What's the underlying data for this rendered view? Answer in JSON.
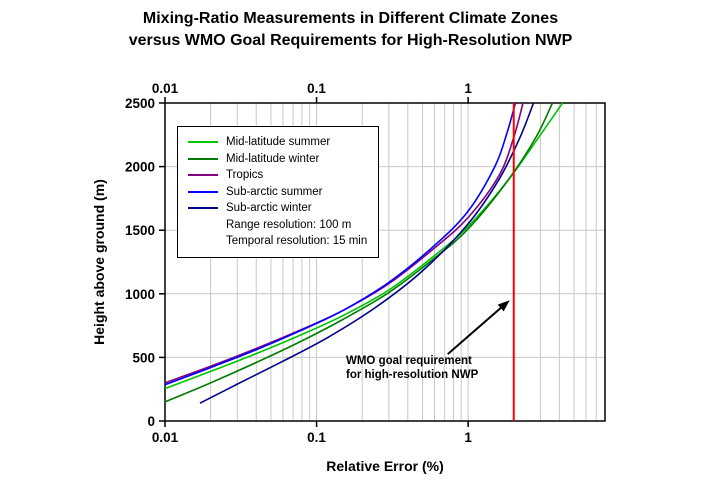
{
  "title": {
    "line1": "Mixing-Ratio Measurements in Different Climate Zones",
    "line2": "versus WMO Goal Requirements for High-Resolution NWP"
  },
  "chart_data": {
    "type": "line",
    "title": "Mixing-Ratio Measurements in Different Climate Zones versus WMO Goal Requirements for High-Resolution NWP",
    "xlabel": "Relative Error (%)",
    "ylabel": "Height above ground (m)",
    "x_scale": "log",
    "xlim": [
      0.01,
      8
    ],
    "ylim": [
      0,
      2500
    ],
    "grid": true,
    "legend_position": "upper-left-inside",
    "x_ticks": [
      {
        "value": 0.01,
        "label": "0.01"
      },
      {
        "value": 0.1,
        "label": "0.1"
      },
      {
        "value": 1,
        "label": "1"
      }
    ],
    "y_ticks": [
      {
        "value": 0,
        "label": "0"
      },
      {
        "value": 500,
        "label": "500"
      },
      {
        "value": 1000,
        "label": "1000"
      },
      {
        "value": 1500,
        "label": "1500"
      },
      {
        "value": 2000,
        "label": "2000"
      },
      {
        "value": 2500,
        "label": "2500"
      }
    ],
    "series": [
      {
        "id": "mid-latitude-summer",
        "name": "Mid-latitude summer",
        "color": "#00c400",
        "x": [
          0.01,
          0.02,
          0.04,
          0.08,
          0.15,
          0.3,
          0.6,
          1.0,
          1.8,
          3.0,
          4.2
        ],
        "y": [
          255,
          390,
          530,
          680,
          830,
          1030,
          1300,
          1530,
          1880,
          2250,
          2500
        ]
      },
      {
        "id": "mid-latitude-winter",
        "name": "Mid-latitude winter",
        "color": "#007d00",
        "x": [
          0.01,
          0.02,
          0.04,
          0.08,
          0.15,
          0.3,
          0.6,
          1.0,
          1.8,
          2.8,
          3.6
        ],
        "y": [
          150,
          300,
          460,
          630,
          800,
          1010,
          1280,
          1510,
          1880,
          2230,
          2500
        ]
      },
      {
        "id": "tropics",
        "name": "Tropics",
        "color": "#800080",
        "x": [
          0.01,
          0.02,
          0.04,
          0.08,
          0.15,
          0.3,
          0.6,
          1.0,
          1.6,
          2.0,
          2.3
        ],
        "y": [
          300,
          430,
          570,
          720,
          870,
          1080,
          1360,
          1600,
          1930,
          2230,
          2500
        ]
      },
      {
        "id": "sub-arctic-summer",
        "name": "Sub-arctic summer",
        "color": "#0000ff",
        "x": [
          0.01,
          0.02,
          0.04,
          0.08,
          0.15,
          0.3,
          0.6,
          1.0,
          1.5,
          1.8,
          2.05
        ],
        "y": [
          285,
          420,
          560,
          715,
          870,
          1090,
          1380,
          1650,
          2000,
          2260,
          2500
        ]
      },
      {
        "id": "sub-arctic-winter",
        "name": "Sub-arctic winter",
        "color": "#00008b",
        "x": [
          0.017,
          0.03,
          0.06,
          0.12,
          0.25,
          0.5,
          1.0,
          1.6,
          2.2,
          2.7
        ],
        "y": [
          140,
          290,
          470,
          660,
          900,
          1180,
          1550,
          1900,
          2230,
          2500
        ]
      }
    ],
    "legend_notes": [
      "Range resolution: 100 m",
      "Temporal resolution: 15 min"
    ],
    "wmo_line": {
      "x": 2,
      "color": "#ff0000"
    },
    "annotation": {
      "line1": "WMO goal requirement",
      "line2": "for high-resolution NWP",
      "arrow_to": {
        "x": 2,
        "height_m": 950
      }
    },
    "colors": {
      "grid": "#c8c8c8",
      "frame": "#000000",
      "text": "#000000"
    }
  }
}
